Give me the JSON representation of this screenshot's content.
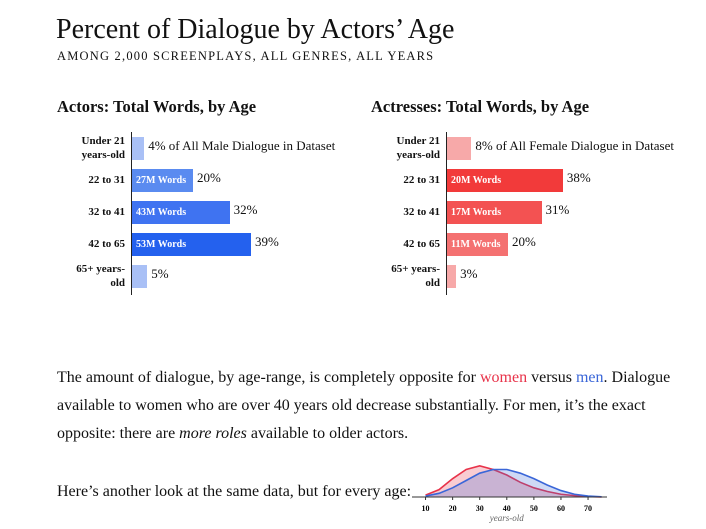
{
  "header": {
    "title": "Percent of Dialogue by Actors’ Age",
    "subtitle": "AMONG 2,000 SCREENPLAYS, ALL GENRES, ALL YEARS"
  },
  "chart_data": [
    {
      "type": "hbar",
      "title": "Actors: Total Words, by Age",
      "categories": [
        "Under 21 years-old",
        "22 to 31",
        "32 to 41",
        "42 to 65",
        "65+ years-old"
      ],
      "values": [
        4,
        20,
        32,
        39,
        5
      ],
      "value_labels": [
        "4% of All Male Dialogue in Dataset",
        "20%",
        "32%",
        "39%",
        "5%"
      ],
      "inner_labels": [
        null,
        "27M Words",
        "43M Words",
        "53M Words",
        null
      ],
      "colors": [
        "#a9c0f6",
        "#5a8bf0",
        "#3f73f1",
        "#2461ee",
        "#a9c0f6"
      ],
      "xlim": [
        0,
        40
      ]
    },
    {
      "type": "hbar",
      "title": "Actresses: Total Words, by Age",
      "categories": [
        "Under 21 years-old",
        "22 to 31",
        "32 to 41",
        "42 to 65",
        "65+ years-old"
      ],
      "values": [
        8,
        38,
        31,
        20,
        3
      ],
      "value_labels": [
        "8% of All Female Dialogue in Dataset",
        "38%",
        "31%",
        "20%",
        "3%"
      ],
      "inner_labels": [
        null,
        "20M Words",
        "17M Words",
        "11M Words",
        null
      ],
      "colors": [
        "#f7a9a9",
        "#f23a3a",
        "#f35252",
        "#f47171",
        "#f7a9a9"
      ],
      "xlim": [
        0,
        40
      ]
    },
    {
      "type": "area",
      "x_label": "years-old",
      "x": [
        10,
        15,
        20,
        25,
        30,
        35,
        40,
        45,
        50,
        55,
        60,
        65,
        70,
        75
      ],
      "series": [
        {
          "color": "#e8334a",
          "values": [
            0.2,
            0.8,
            2.0,
            3.0,
            3.4,
            3.0,
            2.4,
            1.6,
            1.0,
            0.6,
            0.3,
            0.15,
            0.05,
            0
          ]
        },
        {
          "color": "#3a66d8",
          "values": [
            0.1,
            0.4,
            1.0,
            1.8,
            2.6,
            3.0,
            3.0,
            2.6,
            2.0,
            1.3,
            0.7,
            0.3,
            0.1,
            0.02
          ]
        }
      ],
      "xlim": [
        5,
        77
      ],
      "ylim": [
        0,
        3.6
      ],
      "xticks": [
        10,
        20,
        30,
        40,
        50,
        60,
        70
      ]
    }
  ],
  "body": {
    "paragraph": [
      "The amount of dialogue, by age-range, is completely opposite for ",
      "women",
      " versus ",
      "men",
      ". Dialogue available to women who are over 40 years old decrease substantially. For men, it’s the exact opposite: there are ",
      "more roles",
      " available to older actors."
    ],
    "women_color": "#e8334a",
    "men_color": "#3a66d8",
    "lead": "Here’s another look at the same data, but for every age:"
  }
}
